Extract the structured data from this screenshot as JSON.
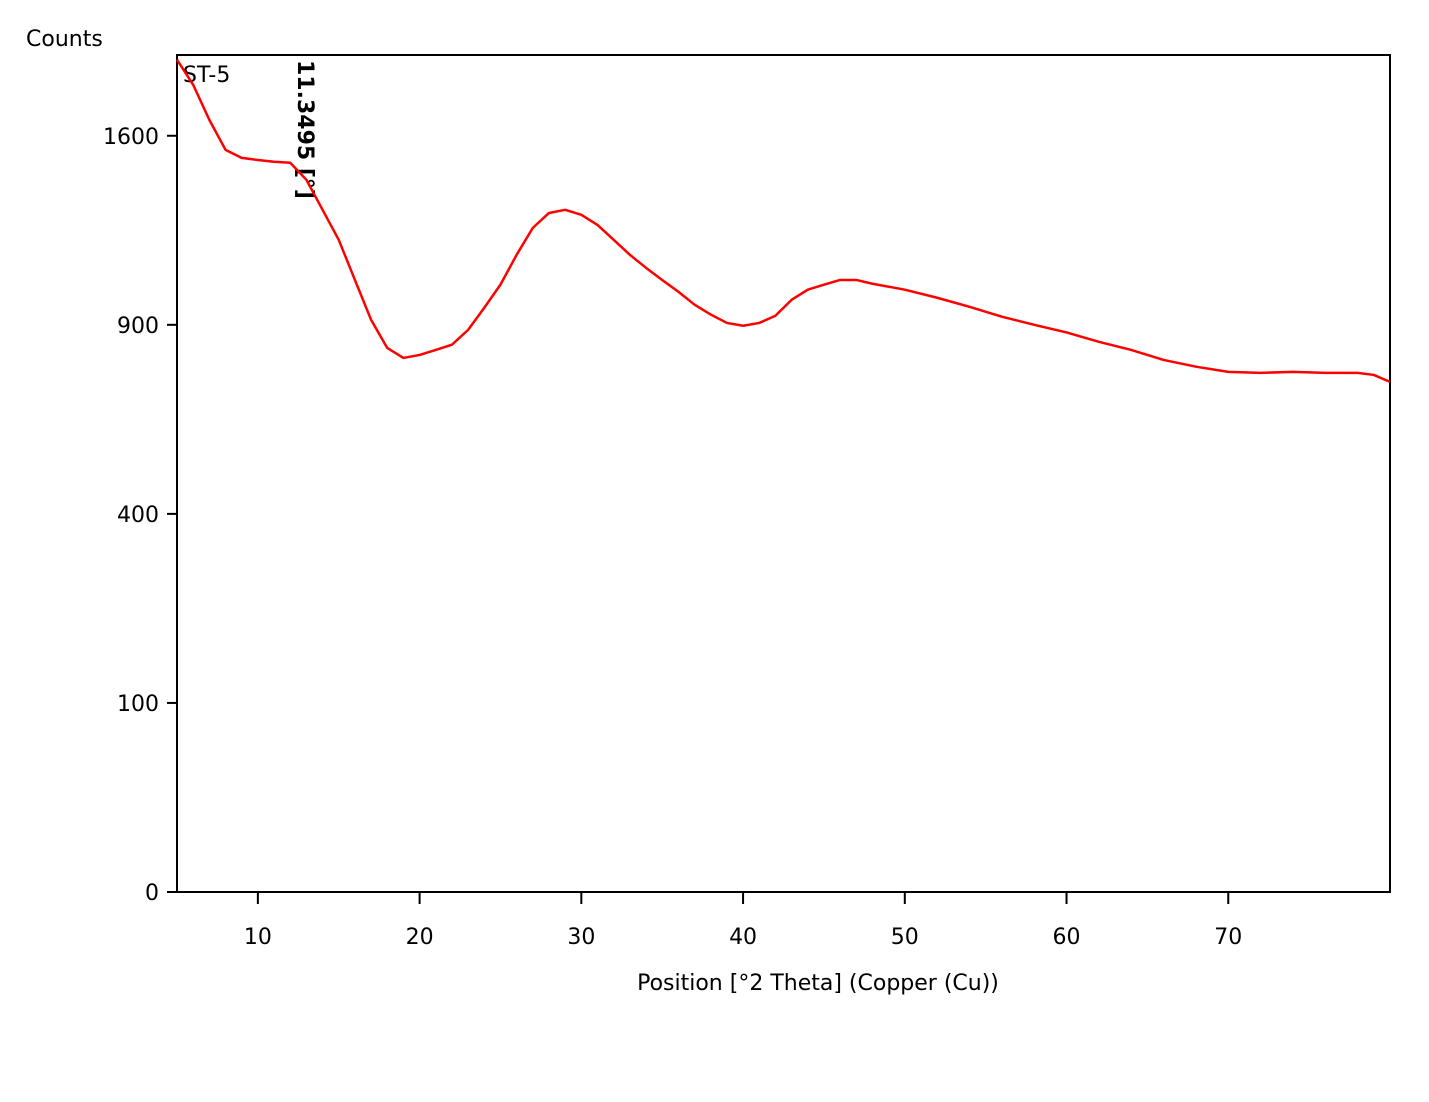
{
  "chart_data": {
    "type": "line",
    "y_axis_label": "Counts",
    "x_axis_label": "Position [°2 Theta] (Copper (Cu))",
    "annotation": "11.3495 [°]",
    "yscale": "sqrt",
    "xlim": [
      5,
      80
    ],
    "xticks": [
      10,
      20,
      30,
      40,
      50,
      60,
      70
    ],
    "ylim": [
      0,
      1960
    ],
    "yticks": [
      0,
      100,
      400,
      900,
      1600
    ],
    "x": [
      5,
      6,
      7,
      8,
      9,
      10,
      11,
      12,
      13,
      14,
      15,
      16,
      17,
      18,
      19,
      20,
      21,
      22,
      23,
      24,
      25,
      26,
      27,
      28,
      29,
      30,
      31,
      32,
      33,
      34,
      35,
      36,
      37,
      38,
      39,
      40,
      41,
      42,
      43,
      44,
      45,
      46,
      47,
      48,
      50,
      52,
      54,
      56,
      58,
      60,
      62,
      64,
      66,
      68,
      70,
      72,
      74,
      76,
      78,
      79,
      80
    ],
    "series": [
      {
        "name": "ST-5",
        "color": "#ff0000",
        "values": [
          1938,
          1823,
          1668,
          1541,
          1508,
          1499,
          1492,
          1488,
          1419,
          1302,
          1190,
          1048,
          916,
          828,
          798,
          807,
          822,
          838,
          884,
          955,
          1032,
          1136,
          1234,
          1290,
          1302,
          1283,
          1245,
          1190,
          1136,
          1090,
          1048,
          1008,
          965,
          933,
          906,
          897,
          906,
          929,
          981,
          1015,
          1032,
          1048,
          1048,
          1035,
          1015,
          988,
          958,
          926,
          900,
          876,
          847,
          822,
          792,
          772,
          757,
          754,
          757,
          754,
          754,
          748,
          728
        ]
      }
    ]
  }
}
